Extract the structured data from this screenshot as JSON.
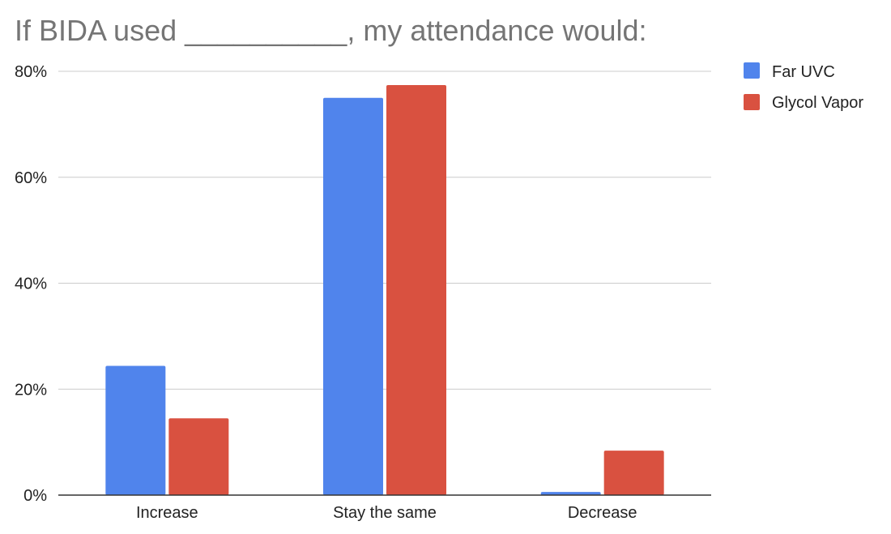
{
  "chart_data": {
    "type": "bar",
    "title": "If BIDA used __________, my attendance would:",
    "categories": [
      "Increase",
      "Stay the same",
      "Decrease"
    ],
    "series": [
      {
        "name": "Far UVC",
        "color": "#5084EC",
        "values": [
          24.4,
          75.0,
          0.6
        ]
      },
      {
        "name": "Glycol Vapor",
        "color": "#D95140",
        "values": [
          14.5,
          77.4,
          8.4
        ]
      }
    ],
    "ylim": [
      0,
      80
    ],
    "yticks": [
      "0%",
      "20%",
      "40%",
      "60%",
      "80%"
    ],
    "ytick_values": [
      0,
      20,
      40,
      60,
      80
    ],
    "grid": true,
    "legend_position": "right-top"
  }
}
